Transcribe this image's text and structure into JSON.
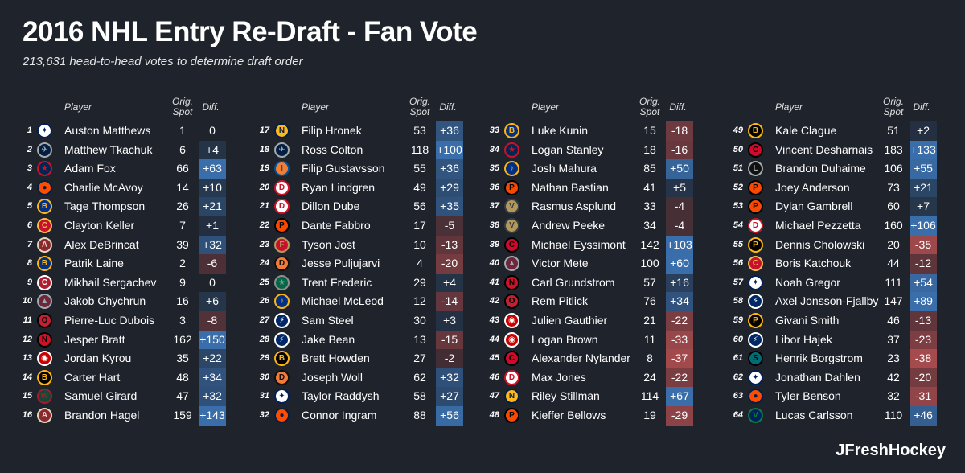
{
  "title": "2016 NHL Entry Re-Draft - Fan Vote",
  "subtitle": "213,631 head-to-head votes to determine draft order",
  "headers": {
    "player": "Player",
    "orig_spot": "Orig. Spot",
    "diff": "Diff."
  },
  "credit": "JFreshHockey",
  "team_colors": {
    "TOR": {
      "fill": "#ffffff",
      "ink": "#00205b",
      "glyph": "✦"
    },
    "WPG": {
      "fill": "#041e42",
      "ink": "#a2aaad",
      "glyph": "✈"
    },
    "CBJ": {
      "fill": "#002654",
      "ink": "#ce1126",
      "glyph": "★"
    },
    "EDM": {
      "fill": "#ff4c00",
      "ink": "#041e42",
      "glyph": "●"
    },
    "BUF": {
      "fill": "#003087",
      "ink": "#fcb514",
      "glyph": "B"
    },
    "CGY": {
      "fill": "#c8102e",
      "ink": "#f1be48",
      "glyph": "C"
    },
    "ARI": {
      "fill": "#8c2633",
      "ink": "#e2d6b5",
      "glyph": "A"
    },
    "MTL": {
      "fill": "#af1e2d",
      "ink": "#ffffff",
      "glyph": "C"
    },
    "COL": {
      "fill": "#6f263d",
      "ink": "#a2aaad",
      "glyph": "▲"
    },
    "OTT": {
      "fill": "#c52032",
      "ink": "#000000",
      "glyph": "O"
    },
    "NJD": {
      "fill": "#ce1126",
      "ink": "#000000",
      "glyph": "N"
    },
    "CAR": {
      "fill": "#cc0000",
      "ink": "#ffffff",
      "glyph": "◉"
    },
    "BOS": {
      "fill": "#000000",
      "ink": "#fcb514",
      "glyph": "B"
    },
    "MIN": {
      "fill": "#154734",
      "ink": "#a6192e",
      "glyph": "W"
    },
    "NSH": {
      "fill": "#ffb81c",
      "ink": "#041e42",
      "glyph": "N"
    },
    "NYI": {
      "fill": "#f47d30",
      "ink": "#00539b",
      "glyph": "I"
    },
    "DET": {
      "fill": "#ffffff",
      "ink": "#ce1126",
      "glyph": "D"
    },
    "PHI": {
      "fill": "#f74902",
      "ink": "#000000",
      "glyph": "P"
    },
    "FLA": {
      "fill": "#c8102e",
      "ink": "#b9975b",
      "glyph": "F"
    },
    "ANA": {
      "fill": "#f47a38",
      "ink": "#111111",
      "glyph": "D"
    },
    "DAL": {
      "fill": "#006847",
      "ink": "#8f8f8c",
      "glyph": "★"
    },
    "STL": {
      "fill": "#002f87",
      "ink": "#fcb514",
      "glyph": "♪"
    },
    "TBL": {
      "fill": "#002868",
      "ink": "#ffffff",
      "glyph": "⚡"
    },
    "VGK": {
      "fill": "#b4975a",
      "ink": "#333f42",
      "glyph": "V"
    },
    "CHI": {
      "fill": "#cf0a2c",
      "ink": "#000000",
      "glyph": "C"
    },
    "LAK": {
      "fill": "#111111",
      "ink": "#a2aaad",
      "glyph": "L"
    },
    "PIT": {
      "fill": "#000000",
      "ink": "#fcb514",
      "glyph": "P"
    },
    "SJS": {
      "fill": "#006d75",
      "ink": "#000000",
      "glyph": "S"
    },
    "VAN": {
      "fill": "#00205b",
      "ink": "#00843d",
      "glyph": "V"
    }
  },
  "columns": [
    [
      {
        "rank": "1",
        "team": "TOR",
        "player": "Auston Matthews",
        "orig": "1",
        "diff": "0",
        "dv": 0
      },
      {
        "rank": "2",
        "team": "WPG",
        "player": "Matthew Tkachuk",
        "orig": "6",
        "diff": "+4",
        "dv": 4
      },
      {
        "rank": "3",
        "team": "CBJ",
        "player": "Adam Fox",
        "orig": "66",
        "diff": "+63",
        "dv": 63
      },
      {
        "rank": "4",
        "team": "EDM",
        "player": "Charlie McAvoy",
        "orig": "14",
        "diff": "+10",
        "dv": 10
      },
      {
        "rank": "5",
        "team": "BUF",
        "player": "Tage Thompson",
        "orig": "26",
        "diff": "+21",
        "dv": 21
      },
      {
        "rank": "6",
        "team": "CGY",
        "player": "Clayton Keller",
        "orig": "7",
        "diff": "+1",
        "dv": 1
      },
      {
        "rank": "7",
        "team": "ARI",
        "player": "Alex DeBrincat",
        "orig": "39",
        "diff": "+32",
        "dv": 32
      },
      {
        "rank": "8",
        "team": "BUF",
        "player": "Patrik Laine",
        "orig": "2",
        "diff": "-6",
        "dv": -6
      },
      {
        "rank": "9",
        "team": "MTL",
        "player": "Mikhail Sergachev",
        "orig": "9",
        "diff": "0",
        "dv": 0
      },
      {
        "rank": "10",
        "team": "COL",
        "player": "Jakob Chychrun",
        "orig": "16",
        "diff": "+6",
        "dv": 6
      },
      {
        "rank": "11",
        "team": "OTT",
        "player": "Pierre-Luc Dubois",
        "orig": "3",
        "diff": "-8",
        "dv": -8
      },
      {
        "rank": "12",
        "team": "NJD",
        "player": "Jesper Bratt",
        "orig": "162",
        "diff": "+150",
        "dv": 150
      },
      {
        "rank": "13",
        "team": "CAR",
        "player": "Jordan Kyrou",
        "orig": "35",
        "diff": "+22",
        "dv": 22
      },
      {
        "rank": "14",
        "team": "BOS",
        "player": "Carter Hart",
        "orig": "48",
        "diff": "+34",
        "dv": 34
      },
      {
        "rank": "15",
        "team": "MIN",
        "player": "Samuel Girard",
        "orig": "47",
        "diff": "+32",
        "dv": 32
      },
      {
        "rank": "16",
        "team": "ARI",
        "player": "Brandon Hagel",
        "orig": "159",
        "diff": "+143",
        "dv": 143
      }
    ],
    [
      {
        "rank": "17",
        "team": "NSH",
        "player": "Filip Hronek",
        "orig": "53",
        "diff": "+36",
        "dv": 36
      },
      {
        "rank": "18",
        "team": "WPG",
        "player": "Ross Colton",
        "orig": "118",
        "diff": "+100",
        "dv": 100
      },
      {
        "rank": "19",
        "team": "NYI",
        "player": "Filip Gustavsson",
        "orig": "55",
        "diff": "+36",
        "dv": 36
      },
      {
        "rank": "20",
        "team": "DET",
        "player": "Ryan Lindgren",
        "orig": "49",
        "diff": "+29",
        "dv": 29
      },
      {
        "rank": "21",
        "team": "DET",
        "player": "Dillon Dube",
        "orig": "56",
        "diff": "+35",
        "dv": 35
      },
      {
        "rank": "22",
        "team": "PHI",
        "player": "Dante Fabbro",
        "orig": "17",
        "diff": "-5",
        "dv": -5
      },
      {
        "rank": "23",
        "team": "FLA",
        "player": "Tyson Jost",
        "orig": "10",
        "diff": "-13",
        "dv": -13
      },
      {
        "rank": "24",
        "team": "ANA",
        "player": "Jesse Puljujarvi",
        "orig": "4",
        "diff": "-20",
        "dv": -20
      },
      {
        "rank": "25",
        "team": "DAL",
        "player": "Trent Frederic",
        "orig": "29",
        "diff": "+4",
        "dv": 4
      },
      {
        "rank": "26",
        "team": "STL",
        "player": "Michael McLeod",
        "orig": "12",
        "diff": "-14",
        "dv": -14
      },
      {
        "rank": "27",
        "team": "TBL",
        "player": "Sam Steel",
        "orig": "30",
        "diff": "+3",
        "dv": 3
      },
      {
        "rank": "28",
        "team": "TBL",
        "player": "Jake Bean",
        "orig": "13",
        "diff": "-15",
        "dv": -15
      },
      {
        "rank": "29",
        "team": "BOS",
        "player": "Brett Howden",
        "orig": "27",
        "diff": "-2",
        "dv": -2
      },
      {
        "rank": "30",
        "team": "ANA",
        "player": "Joseph Woll",
        "orig": "62",
        "diff": "+32",
        "dv": 32
      },
      {
        "rank": "31",
        "team": "TOR",
        "player": "Taylor Raddysh",
        "orig": "58",
        "diff": "+27",
        "dv": 27
      },
      {
        "rank": "32",
        "team": "EDM",
        "player": "Connor Ingram",
        "orig": "88",
        "diff": "+56",
        "dv": 56
      }
    ],
    [
      {
        "rank": "33",
        "team": "BUF",
        "player": "Luke Kunin",
        "orig": "15",
        "diff": "-18",
        "dv": -18
      },
      {
        "rank": "34",
        "team": "CBJ",
        "player": "Logan Stanley",
        "orig": "18",
        "diff": "-16",
        "dv": -16
      },
      {
        "rank": "35",
        "team": "STL",
        "player": "Josh Mahura",
        "orig": "85",
        "diff": "+50",
        "dv": 50
      },
      {
        "rank": "36",
        "team": "PHI",
        "player": "Nathan Bastian",
        "orig": "41",
        "diff": "+5",
        "dv": 5
      },
      {
        "rank": "37",
        "team": "VGK",
        "player": "Rasmus Asplund",
        "orig": "33",
        "diff": "-4",
        "dv": -4
      },
      {
        "rank": "38",
        "team": "VGK",
        "player": "Andrew Peeke",
        "orig": "34",
        "diff": "-4",
        "dv": -4
      },
      {
        "rank": "39",
        "team": "CHI",
        "player": "Michael Eyssimont",
        "orig": "142",
        "diff": "+103",
        "dv": 103
      },
      {
        "rank": "40",
        "team": "COL",
        "player": "Victor Mete",
        "orig": "100",
        "diff": "+60",
        "dv": 60
      },
      {
        "rank": "41",
        "team": "NJD",
        "player": "Carl Grundstrom",
        "orig": "57",
        "diff": "+16",
        "dv": 16
      },
      {
        "rank": "42",
        "team": "OTT",
        "player": "Rem Pitlick",
        "orig": "76",
        "diff": "+34",
        "dv": 34
      },
      {
        "rank": "43",
        "team": "CAR",
        "player": "Julien Gauthier",
        "orig": "21",
        "diff": "-22",
        "dv": -22
      },
      {
        "rank": "44",
        "team": "CAR",
        "player": "Logan Brown",
        "orig": "11",
        "diff": "-33",
        "dv": -33
      },
      {
        "rank": "45",
        "team": "CHI",
        "player": "Alexander Nylander",
        "orig": "8",
        "diff": "-37",
        "dv": -37
      },
      {
        "rank": "46",
        "team": "DET",
        "player": "Max Jones",
        "orig": "24",
        "diff": "-22",
        "dv": -22
      },
      {
        "rank": "47",
        "team": "NSH",
        "player": "Riley Stillman",
        "orig": "114",
        "diff": "+67",
        "dv": 67
      },
      {
        "rank": "48",
        "team": "PHI",
        "player": "Kieffer Bellows",
        "orig": "19",
        "diff": "-29",
        "dv": -29
      }
    ],
    [
      {
        "rank": "49",
        "team": "BOS",
        "player": "Kale Clague",
        "orig": "51",
        "diff": "+2",
        "dv": 2
      },
      {
        "rank": "50",
        "team": "CHI",
        "player": "Vincent Desharnais",
        "orig": "183",
        "diff": "+133",
        "dv": 133
      },
      {
        "rank": "51",
        "team": "LAK",
        "player": "Brandon Duhaime",
        "orig": "106",
        "diff": "+55",
        "dv": 55
      },
      {
        "rank": "52",
        "team": "PHI",
        "player": "Joey Anderson",
        "orig": "73",
        "diff": "+21",
        "dv": 21
      },
      {
        "rank": "53",
        "team": "PHI",
        "player": "Dylan Gambrell",
        "orig": "60",
        "diff": "+7",
        "dv": 7
      },
      {
        "rank": "54",
        "team": "DET",
        "player": "Michael Pezzetta",
        "orig": "160",
        "diff": "+106",
        "dv": 106
      },
      {
        "rank": "55",
        "team": "PIT",
        "player": "Dennis Cholowski",
        "orig": "20",
        "diff": "-35",
        "dv": -35
      },
      {
        "rank": "56",
        "team": "CGY",
        "player": "Boris Katchouk",
        "orig": "44",
        "diff": "-12",
        "dv": -12
      },
      {
        "rank": "57",
        "team": "TOR",
        "player": "Noah Gregor",
        "orig": "111",
        "diff": "+54",
        "dv": 54
      },
      {
        "rank": "58",
        "team": "TBL",
        "player": "Axel Jonsson-Fjallby",
        "orig": "147",
        "diff": "+89",
        "dv": 89
      },
      {
        "rank": "59",
        "team": "PIT",
        "player": "Givani Smith",
        "orig": "46",
        "diff": "-13",
        "dv": -13
      },
      {
        "rank": "60",
        "team": "TBL",
        "player": "Libor Hajek",
        "orig": "37",
        "diff": "-23",
        "dv": -23
      },
      {
        "rank": "61",
        "team": "SJS",
        "player": "Henrik Borgstrom",
        "orig": "23",
        "diff": "-38",
        "dv": -38
      },
      {
        "rank": "62",
        "team": "TOR",
        "player": "Jonathan Dahlen",
        "orig": "42",
        "diff": "-20",
        "dv": -20
      },
      {
        "rank": "63",
        "team": "EDM",
        "player": "Tyler Benson",
        "orig": "32",
        "diff": "-31",
        "dv": -31
      },
      {
        "rank": "64",
        "team": "VAN",
        "player": "Lucas Carlsson",
        "orig": "110",
        "diff": "+46",
        "dv": 46
      }
    ]
  ]
}
